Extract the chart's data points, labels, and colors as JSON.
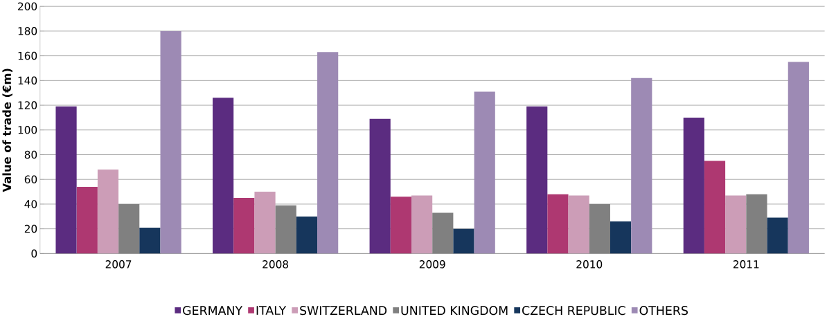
{
  "chart_data": {
    "type": "bar",
    "ylabel": "Value of trade (€m)",
    "categories": [
      "2007",
      "2008",
      "2009",
      "2010",
      "2011"
    ],
    "series": [
      {
        "name": "GERMANY",
        "color": "#5b2c80",
        "values": [
          119,
          126,
          109,
          119,
          110
        ]
      },
      {
        "name": "ITALY",
        "color": "#ae3871",
        "values": [
          54,
          45,
          46,
          48,
          75
        ]
      },
      {
        "name": "SWITZERLAND",
        "color": "#cc9db7",
        "values": [
          68,
          50,
          47,
          47,
          47
        ]
      },
      {
        "name": "UNITED KINGDOM",
        "color": "#808080",
        "values": [
          40,
          39,
          33,
          40,
          48
        ]
      },
      {
        "name": "CZECH REPUBLIC",
        "color": "#16365c",
        "values": [
          21,
          30,
          20,
          26,
          29
        ]
      },
      {
        "name": "OTHERS",
        "color": "#9d8ab4",
        "values": [
          180,
          163,
          131,
          142,
          155
        ]
      }
    ],
    "ylim": [
      0,
      200
    ],
    "yticks": [
      0,
      20,
      40,
      60,
      80,
      100,
      120,
      140,
      160,
      180,
      200
    ],
    "grid": "y",
    "legend": "bottom"
  }
}
